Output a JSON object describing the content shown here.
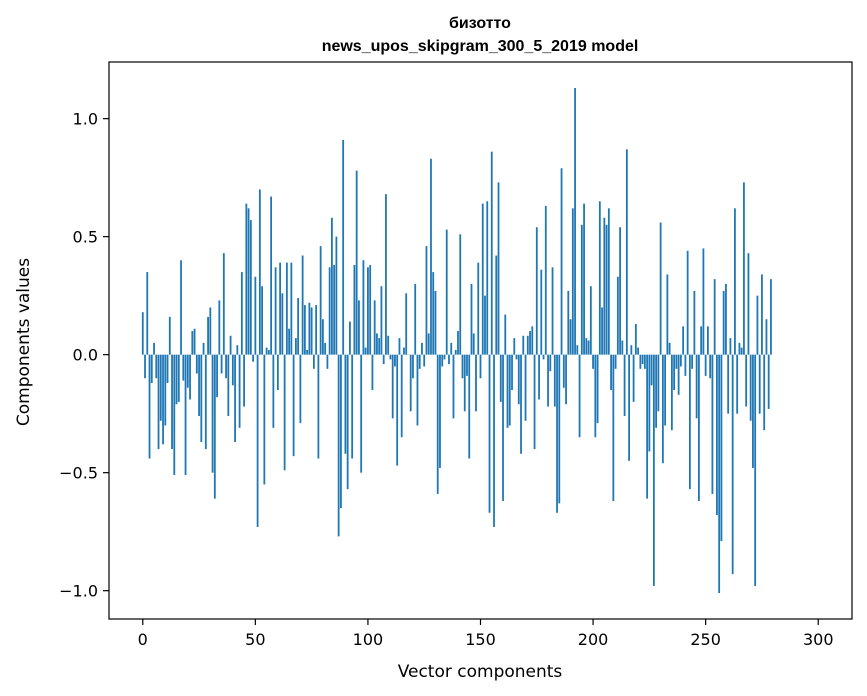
{
  "chart_data": {
    "type": "bar",
    "title_line1": "бизотто",
    "title_line2": "news_upos_skipgram_300_5_2019 model",
    "xlabel": "Vector components",
    "ylabel": "Components values",
    "xlim": [
      -15,
      315
    ],
    "ylim": [
      -1.12,
      1.24
    ],
    "xticks": [
      0,
      50,
      100,
      150,
      200,
      250,
      300
    ],
    "xtick_labels": [
      "0",
      "50",
      "100",
      "150",
      "200",
      "250",
      "300"
    ],
    "yticks": [
      -1.0,
      -0.5,
      0.0,
      0.5,
      1.0
    ],
    "ytick_labels": [
      "−1.0",
      "−0.5",
      "0.0",
      "0.5",
      "1.0"
    ],
    "bar_color": "#1f77b4",
    "grid": false,
    "values": [
      0.18,
      -0.1,
      0.35,
      -0.44,
      -0.12,
      0.05,
      -0.1,
      -0.4,
      -0.28,
      -0.38,
      -0.3,
      -0.12,
      0.16,
      -0.4,
      -0.51,
      -0.21,
      -0.2,
      0.4,
      -0.11,
      -0.51,
      -0.14,
      -0.19,
      0.1,
      0.11,
      -0.08,
      -0.26,
      -0.37,
      0.05,
      -0.4,
      0.16,
      0.2,
      -0.5,
      -0.61,
      -0.18,
      0.23,
      -0.08,
      0.43,
      -0.1,
      -0.26,
      0.08,
      -0.13,
      -0.37,
      0.04,
      -0.31,
      0.35,
      -0.22,
      0.64,
      0.62,
      0.57,
      -0.03,
      0.33,
      -0.73,
      0.7,
      0.29,
      -0.55,
      0.03,
      0.02,
      0.67,
      -0.31,
      0.37,
      -0.15,
      0.39,
      0.26,
      -0.49,
      0.39,
      0.11,
      0.39,
      -0.43,
      0.07,
      0.24,
      -0.29,
      0.42,
      0.21,
      0.02,
      0.22,
      0.2,
      -0.06,
      0.21,
      -0.44,
      0.46,
      0.15,
      0.05,
      -0.06,
      0.37,
      0.58,
      0.38,
      0.5,
      -0.77,
      -0.65,
      0.91,
      -0.42,
      -0.57,
      0.14,
      -0.44,
      0.38,
      0.78,
      0.23,
      -0.5,
      0.4,
      0.03,
      0.37,
      0.38,
      -0.15,
      0.23,
      0.09,
      0.07,
      0.29,
      -0.04,
      0.68,
      0.08,
      -0.02,
      -0.27,
      -0.05,
      -0.47,
      0.07,
      -0.35,
      0.03,
      0.26,
      0.0,
      -0.24,
      -0.1,
      0.3,
      -0.3,
      -0.06,
      0.05,
      -0.05,
      0.46,
      0.09,
      0.83,
      0.35,
      0.27,
      -0.59,
      -0.48,
      -0.05,
      -0.02,
      0.53,
      -0.04,
      0.05,
      -0.27,
      0.02,
      0.1,
      0.51,
      -0.1,
      -0.24,
      -0.09,
      -0.44,
      0.3,
      0.09,
      -0.24,
      0.39,
      -0.1,
      0.64,
      0.25,
      0.65,
      -0.67,
      0.86,
      -0.73,
      0.42,
      0.73,
      -0.2,
      -0.62,
      0.17,
      -0.31,
      -0.3,
      -0.15,
      0.07,
      -0.02,
      -0.21,
      -0.42,
      0.08,
      -0.28,
      0.08,
      0.1,
      0.12,
      -0.4,
      0.54,
      -0.19,
      0.36,
      -0.02,
      0.63,
      -0.22,
      -0.07,
      0.37,
      -0.22,
      -0.67,
      -0.63,
      0.79,
      -0.14,
      -0.21,
      0.27,
      0.15,
      0.62,
      1.13,
      0.04,
      -0.35,
      0.55,
      0.64,
      0.07,
      0.06,
      0.29,
      -0.06,
      -0.35,
      -0.29,
      0.65,
      0.2,
      0.58,
      0.55,
      0.62,
      -0.15,
      -0.62,
      -0.06,
      0.33,
      0.54,
      0.06,
      -0.26,
      0.87,
      -0.45,
      0.04,
      -0.2,
      0.13,
      0.03,
      -0.06,
      -0.04,
      -0.06,
      -0.61,
      -0.41,
      -0.13,
      -0.98,
      -0.31,
      -0.24,
      0.56,
      -0.46,
      -0.3,
      0.34,
      0.05,
      -0.32,
      -0.15,
      -0.06,
      -0.17,
      -0.05,
      0.12,
      -0.09,
      0.44,
      -0.57,
      -0.06,
      0.27,
      -0.27,
      -0.62,
      0.12,
      0.45,
      -0.09,
      0.12,
      -0.1,
      -0.59,
      0.32,
      -0.68,
      -1.01,
      -0.79,
      0.27,
      0.3,
      -0.25,
      0.07,
      -0.93,
      0.62,
      -0.25,
      0.05,
      0.03,
      0.73,
      -0.22,
      0.43,
      -0.28,
      -0.48,
      -0.98,
      0.25,
      -0.25,
      0.34,
      -0.32,
      0.15,
      -0.23,
      0.32
    ]
  }
}
